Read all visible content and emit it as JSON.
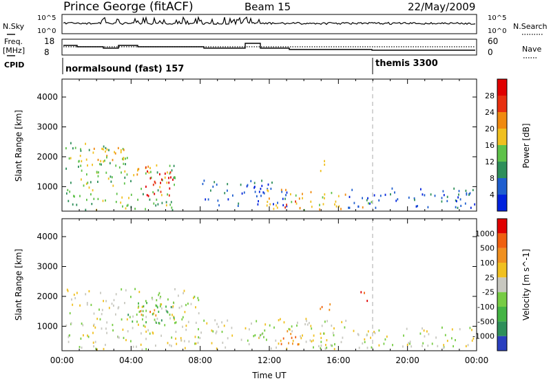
{
  "header": {
    "station": "Prince George (fitACF)",
    "beam": "Beam 15",
    "date": "22/May/2009"
  },
  "top_panels": {
    "nsky_label": "N.Sky",
    "nsky_ticks": [
      "10^5",
      "10^0"
    ],
    "nsearch_label": "N.Search",
    "nsearch_ticks": [
      "10^5",
      "10^0"
    ],
    "freq_label_1": "Freq.",
    "freq_label_2": "[MHz]",
    "freq_ticks": [
      "18",
      "8"
    ],
    "nave_label": "Nave",
    "nave_ticks": [
      "60",
      "0"
    ],
    "cpid_label": "CPID",
    "cpid_segments": [
      {
        "name": "normalsound (fast) 157",
        "start_hour": 0
      },
      {
        "name": "themis 3300",
        "start_hour": 18
      }
    ]
  },
  "chart_data": [
    {
      "type": "heatmap",
      "title": "",
      "xlabel": "",
      "ylabel": "Slant Range [km]",
      "xlim_hours": [
        0,
        24
      ],
      "ylim": [
        180,
        4600
      ],
      "x_ticks": [
        "00:00",
        "04:00",
        "08:00",
        "12:00",
        "16:00",
        "20:00",
        "00:00"
      ],
      "y_ticks": [
        1000,
        2000,
        3000,
        4000
      ],
      "colorbar": {
        "label": "Power [dB]",
        "ticks": [
          "28",
          "24",
          "20",
          "16",
          "12",
          "8",
          "4"
        ],
        "colors": [
          "#0022dd",
          "#1f5fcf",
          "#2e8f5a",
          "#5fc24a",
          "#f0c020",
          "#f08a10",
          "#e83010",
          "#e00000"
        ]
      },
      "regions": [
        {
          "h0": 0.2,
          "h1": 3.8,
          "r0": 250,
          "r1": 2500,
          "level": 3
        },
        {
          "h0": 1.6,
          "h1": 3.8,
          "r0": 1800,
          "r1": 2350,
          "level": 4
        },
        {
          "h0": 3.6,
          "h1": 6.6,
          "r0": 250,
          "r1": 1800,
          "level": 3
        },
        {
          "h0": 4.6,
          "h1": 6.5,
          "r0": 700,
          "r1": 1700,
          "level": 7
        },
        {
          "h0": 4.2,
          "h1": 5.2,
          "r0": 1350,
          "r1": 1800,
          "level": 5
        },
        {
          "h0": 8.0,
          "h1": 13.0,
          "r0": 350,
          "r1": 1250,
          "level": 1
        },
        {
          "h0": 11.8,
          "h1": 16.5,
          "r0": 250,
          "r1": 950,
          "level": 4
        },
        {
          "h0": 12.8,
          "h1": 13.8,
          "r0": 300,
          "r1": 650,
          "level": 6
        },
        {
          "h0": 14.8,
          "h1": 15.5,
          "r0": 1550,
          "r1": 1900,
          "level": 5
        },
        {
          "h0": 16.5,
          "h1": 24.0,
          "r0": 300,
          "r1": 1000,
          "level": 1
        },
        {
          "h0": 17.0,
          "h1": 18.0,
          "r0": 300,
          "r1": 600,
          "level": 4
        }
      ]
    },
    {
      "type": "heatmap",
      "title": "",
      "xlabel": "Time UT",
      "ylabel": "Slant Range [km]",
      "xlim_hours": [
        0,
        24
      ],
      "ylim": [
        180,
        4600
      ],
      "x_ticks": [
        "00:00",
        "04:00",
        "08:00",
        "12:00",
        "16:00",
        "20:00",
        "00:00"
      ],
      "y_ticks": [
        1000,
        2000,
        3000,
        4000
      ],
      "colorbar": {
        "label": "Velocity [m s^-1]",
        "ticks": [
          "1000",
          "500",
          "100",
          "25",
          "-25",
          "-100",
          "-500",
          "-1000"
        ],
        "colors": [
          "#2a3fbf",
          "#2e8f5a",
          "#44b444",
          "#77cc44",
          "#c8c8c0",
          "#f0c020",
          "#f09020",
          "#f06010",
          "#e00000"
        ]
      },
      "regions": [
        {
          "h0": 0.2,
          "h1": 8.0,
          "r0": 250,
          "r1": 2300,
          "level": 4
        },
        {
          "h0": 3.8,
          "h1": 6.5,
          "r0": 1000,
          "r1": 1850,
          "level": 2
        },
        {
          "h0": 4.3,
          "h1": 5.5,
          "r0": 1200,
          "r1": 1600,
          "level": 6
        },
        {
          "h0": 8.0,
          "h1": 16.5,
          "r0": 250,
          "r1": 1300,
          "level": 4
        },
        {
          "h0": 12.2,
          "h1": 13.8,
          "r0": 250,
          "r1": 900,
          "level": 6
        },
        {
          "h0": 14.8,
          "h1": 15.6,
          "r0": 1550,
          "r1": 2000,
          "level": 7
        },
        {
          "h0": 16.5,
          "h1": 24.0,
          "r0": 300,
          "r1": 1000,
          "level": 4
        },
        {
          "h0": 17.2,
          "h1": 17.7,
          "r0": 1800,
          "r1": 2400,
          "level": 7
        }
      ]
    }
  ]
}
